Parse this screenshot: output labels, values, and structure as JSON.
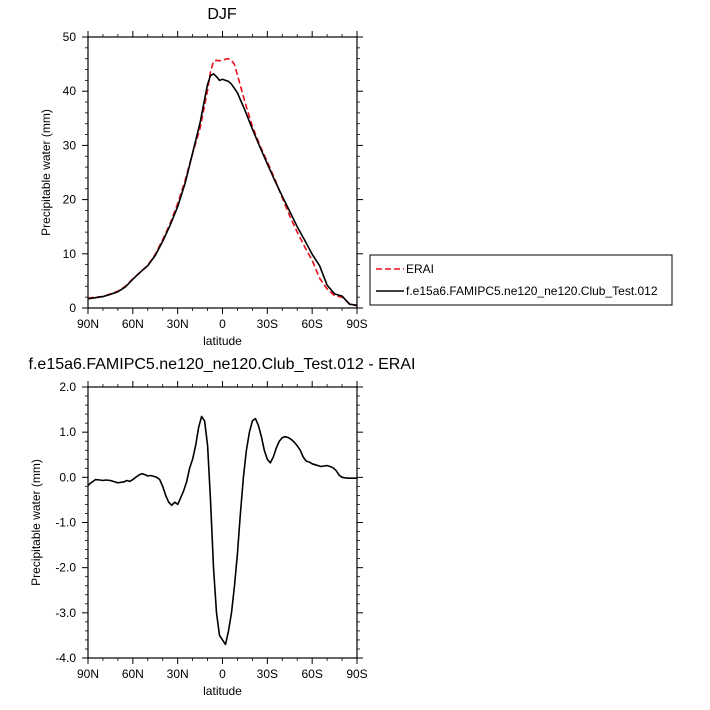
{
  "chart_data": [
    {
      "type": "line",
      "title": "DJF",
      "xlabel": "latitude",
      "ylabel": "Precipitable water (mm)",
      "xlim": [
        90,
        -90
      ],
      "ylim": [
        0,
        50
      ],
      "x_tick_values": [
        90,
        60,
        30,
        0,
        -30,
        -60,
        -90
      ],
      "x_tick_labels": [
        "90N",
        "60N",
        "30N",
        "0",
        "30S",
        "60S",
        "90S"
      ],
      "y_tick_values": [
        0,
        10,
        20,
        30,
        40,
        50
      ],
      "y_tick_labels": [
        "0",
        "10",
        "20",
        "30",
        "40",
        "50"
      ],
      "legend_position": "right",
      "series": [
        {
          "name": "ERAI",
          "color": "#e8101a",
          "dash": "dashed",
          "x": [
            90,
            85,
            80,
            75,
            70,
            65,
            60,
            55,
            50,
            45,
            40,
            35,
            30,
            25,
            20,
            15,
            10,
            8,
            6,
            4,
            2,
            0,
            -2,
            -4,
            -6,
            -8,
            -10,
            -15,
            -20,
            -25,
            -30,
            -35,
            -40,
            -45,
            -50,
            -55,
            -60,
            -65,
            -70,
            -75,
            -80,
            -85,
            -90
          ],
          "values": [
            1.8,
            2.0,
            2.1,
            2.6,
            3.1,
            4.0,
            5.4,
            6.6,
            7.9,
            9.9,
            12.6,
            15.6,
            19.3,
            23.5,
            28.5,
            33.2,
            40.2,
            43.6,
            45.5,
            45.7,
            45.6,
            45.7,
            45.9,
            46.0,
            45.7,
            44.9,
            43.0,
            38.0,
            33.5,
            30.0,
            27.0,
            23.8,
            20.3,
            17.0,
            14.0,
            11.3,
            8.8,
            5.5,
            3.5,
            2.3,
            2.0,
            0.8,
            0.4
          ]
        },
        {
          "name": "f.e15a6.FAMIPC5.ne120_ne120.Club_Test.012",
          "color": "#000000",
          "dash": "solid",
          "x": [
            90,
            85,
            80,
            75,
            70,
            65,
            60,
            55,
            50,
            45,
            40,
            35,
            30,
            25,
            20,
            15,
            12,
            10,
            8,
            6,
            4,
            2,
            0,
            -2,
            -4,
            -6,
            -8,
            -10,
            -15,
            -20,
            -25,
            -30,
            -35,
            -40,
            -45,
            -50,
            -55,
            -60,
            -65,
            -70,
            -75,
            -80,
            -85,
            -90
          ],
          "values": [
            1.7,
            1.9,
            2.1,
            2.5,
            3.0,
            3.9,
            5.3,
            6.6,
            7.8,
            9.7,
            12.3,
            15.3,
            18.7,
            23.0,
            28.6,
            34.2,
            38.5,
            41.3,
            42.9,
            43.2,
            42.7,
            42.0,
            42.2,
            42.0,
            41.8,
            41.3,
            40.5,
            39.7,
            36.5,
            33.0,
            29.7,
            26.6,
            23.5,
            20.6,
            17.8,
            15.0,
            12.5,
            9.9,
            7.8,
            4.2,
            2.6,
            2.2,
            0.7,
            0.5
          ]
        }
      ]
    },
    {
      "type": "line",
      "title": "f.e15a6.FAMIPC5.ne120_ne120.Club_Test.012 - ERAI",
      "xlabel": "latitude",
      "ylabel": "Precipitable water (mm)",
      "xlim": [
        90,
        -90
      ],
      "ylim": [
        -4,
        2
      ],
      "x_tick_values": [
        90,
        60,
        30,
        0,
        -30,
        -60,
        -90
      ],
      "x_tick_labels": [
        "90N",
        "60N",
        "30N",
        "0",
        "30S",
        "60S",
        "90S"
      ],
      "y_tick_values": [
        2,
        1,
        0,
        -1,
        -2,
        -3,
        -4
      ],
      "y_tick_labels": [
        "2.0",
        "1.0",
        "0.0",
        "-1.0",
        "-2.0",
        "-3.0",
        "-4.0"
      ],
      "series": [
        {
          "color": "#000000",
          "x": [
            90,
            88,
            85,
            82,
            80,
            78,
            75,
            72,
            70,
            68,
            66,
            64,
            62,
            60,
            58,
            56,
            54,
            52,
            50,
            48,
            46,
            44,
            42,
            40,
            38,
            36,
            34,
            32,
            30,
            28,
            26,
            24,
            22,
            20,
            18,
            16,
            14,
            12,
            10,
            8,
            6,
            4,
            2,
            0,
            -2,
            -4,
            -6,
            -8,
            -10,
            -12,
            -14,
            -16,
            -18,
            -20,
            -22,
            -24,
            -26,
            -28,
            -30,
            -32,
            -34,
            -36,
            -38,
            -40,
            -42,
            -44,
            -46,
            -48,
            -50,
            -52,
            -54,
            -56,
            -58,
            -60,
            -62,
            -64,
            -66,
            -68,
            -70,
            -72,
            -74,
            -76,
            -78,
            -80,
            -82,
            -84,
            -86,
            -88,
            -90
          ],
          "values": [
            -0.18,
            -0.12,
            -0.05,
            -0.06,
            -0.07,
            -0.06,
            -0.07,
            -0.1,
            -0.12,
            -0.11,
            -0.1,
            -0.07,
            -0.09,
            -0.05,
            0.0,
            0.05,
            0.08,
            0.06,
            0.03,
            0.04,
            0.02,
            0.0,
            -0.05,
            -0.2,
            -0.4,
            -0.55,
            -0.62,
            -0.55,
            -0.6,
            -0.45,
            -0.3,
            -0.1,
            0.2,
            0.4,
            0.7,
            1.1,
            1.35,
            1.25,
            0.7,
            -0.5,
            -2.0,
            -3.0,
            -3.5,
            -3.6,
            -3.7,
            -3.4,
            -3.0,
            -2.4,
            -1.7,
            -0.8,
            0.0,
            0.6,
            1.0,
            1.25,
            1.3,
            1.15,
            0.9,
            0.6,
            0.4,
            0.32,
            0.45,
            0.65,
            0.8,
            0.88,
            0.9,
            0.88,
            0.84,
            0.78,
            0.7,
            0.6,
            0.45,
            0.36,
            0.34,
            0.3,
            0.28,
            0.26,
            0.24,
            0.25,
            0.26,
            0.24,
            0.21,
            0.15,
            0.05,
            0.0,
            -0.01,
            -0.02,
            -0.02,
            -0.02,
            -0.02
          ]
        }
      ]
    }
  ]
}
